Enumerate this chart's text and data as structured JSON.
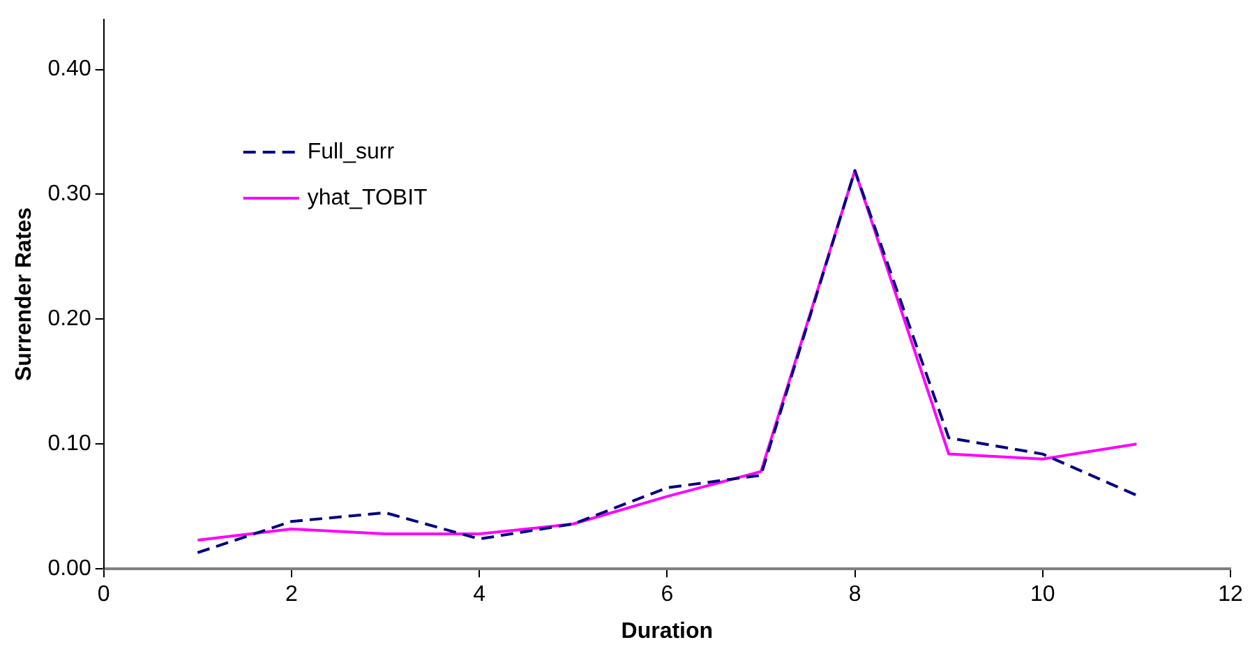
{
  "chart_data": {
    "type": "line",
    "xlabel": "Duration",
    "ylabel": "Surrender Rates",
    "x": [
      1,
      2,
      3,
      4,
      5,
      6,
      7,
      8,
      9,
      10,
      11
    ],
    "series": [
      {
        "name": "Full_surr",
        "color": "#000080",
        "line_style": "dashed",
        "values": [
          0.013,
          0.038,
          0.045,
          0.024,
          0.036,
          0.065,
          0.075,
          0.319,
          0.105,
          0.092,
          0.059
        ]
      },
      {
        "name": "yhat_TOBIT",
        "color": "#ff00ff",
        "line_style": "solid",
        "values": [
          0.023,
          0.032,
          0.028,
          0.028,
          0.036,
          0.058,
          0.078,
          0.319,
          0.092,
          0.088,
          0.1
        ]
      }
    ],
    "xlim": [
      0,
      12
    ],
    "xticks": [
      0,
      2,
      4,
      6,
      8,
      10,
      12
    ],
    "ylim": [
      0,
      0.44
    ],
    "yticks": [
      {
        "value": 0,
        "label": "0.00"
      },
      {
        "value": 0.1,
        "label": "0.10"
      },
      {
        "value": 0.2,
        "label": "0.20"
      },
      {
        "value": 0.3,
        "label": "0.30"
      },
      {
        "value": 0.4,
        "label": "0.40"
      }
    ],
    "grid": false,
    "legend": "top left",
    "marker": "none"
  }
}
